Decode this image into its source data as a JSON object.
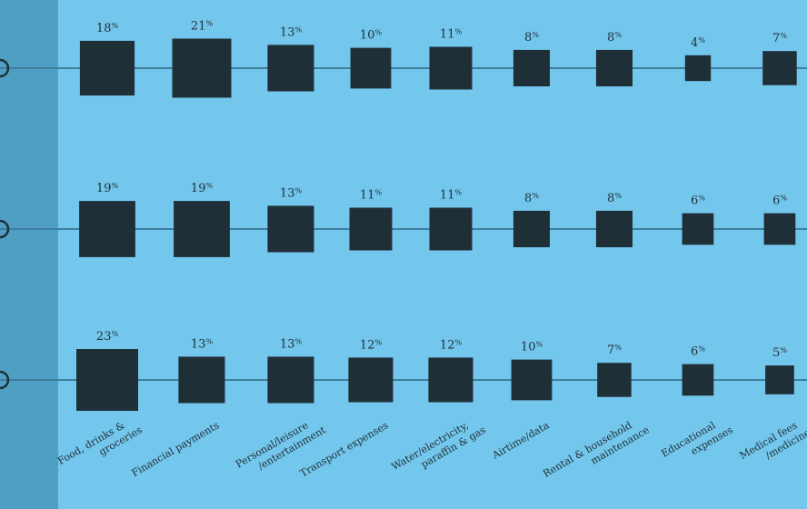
{
  "chart_data": {
    "type": "scatter",
    "title": "",
    "xlabel": "",
    "ylabel": "",
    "categories": [
      [
        "Food, drinks &",
        "groceries"
      ],
      [
        "Financial payments"
      ],
      [
        "Personal/leisure",
        "/entertainment"
      ],
      [
        "Transport expenses"
      ],
      [
        "Water/electricity,",
        "paraffin & gas"
      ],
      [
        "Airtime/data"
      ],
      [
        "Rental & household",
        "maintenance"
      ],
      [
        "Educational",
        "expenses"
      ],
      [
        "Medical fees",
        "/medicines"
      ]
    ],
    "series": [
      {
        "values": [
          18,
          21,
          13,
          10,
          11,
          8,
          8,
          4,
          7
        ]
      },
      {
        "values": [
          19,
          19,
          13,
          11,
          11,
          8,
          8,
          6,
          6
        ]
      },
      {
        "values": [
          23,
          13,
          13,
          12,
          12,
          10,
          7,
          6,
          5
        ]
      }
    ],
    "value_suffix": "%",
    "colors": {
      "background": "#74c7ec",
      "side_panel": "#4f9fc4",
      "marker": "#1f2f38",
      "line": "#3d7f9c"
    }
  }
}
